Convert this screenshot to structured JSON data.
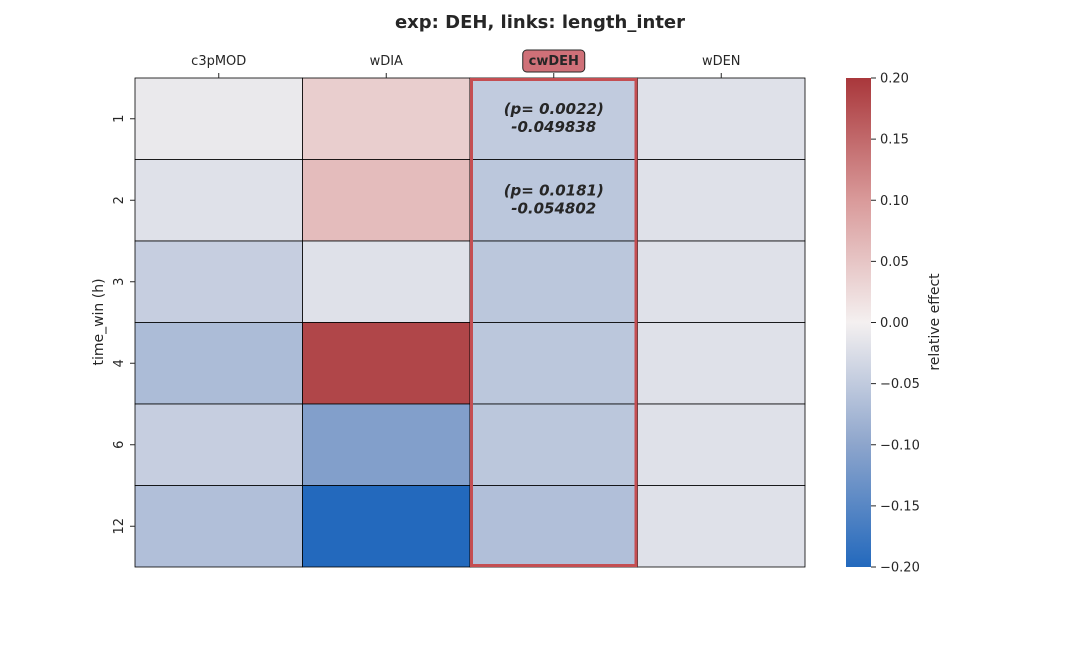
{
  "chart_data": {
    "type": "heatmap",
    "title": "exp: DEH, links: length_inter",
    "xlabel": "",
    "ylabel": "time_win (h)",
    "x_ticks_position": "top",
    "columns": [
      "c3pMOD",
      "wDIA",
      "cwDEH",
      "wDEN"
    ],
    "rows": [
      "1",
      "2",
      "3",
      "4",
      "6",
      "12"
    ],
    "values": [
      [
        -0.01,
        0.04,
        -0.05,
        -0.02
      ],
      [
        -0.02,
        0.06,
        -0.055,
        -0.02
      ],
      [
        -0.045,
        -0.02,
        -0.055,
        -0.02
      ],
      [
        -0.07,
        0.185,
        -0.055,
        -0.02
      ],
      [
        -0.045,
        -0.11,
        -0.055,
        -0.02
      ],
      [
        -0.065,
        -0.2,
        -0.065,
        -0.02
      ]
    ],
    "highlight_column": "cwDEH",
    "annotations": [
      {
        "row": "1",
        "column": "cwDEH",
        "line1": "(p= 0.0022)",
        "line2": "-0.049838"
      },
      {
        "row": "2",
        "column": "cwDEH",
        "line1": "(p= 0.0181)",
        "line2": "-0.054802"
      }
    ],
    "colorbar": {
      "label": "relative effect",
      "range": [
        -0.2,
        0.2
      ],
      "ticks": [
        "0.20",
        "0.15",
        "0.10",
        "0.05",
        "0.00",
        "−0.05",
        "−0.10",
        "−0.15",
        "−0.20"
      ],
      "tick_values": [
        0.2,
        0.15,
        0.1,
        0.05,
        0.0,
        -0.05,
        -0.1,
        -0.15,
        -0.2
      ],
      "colormap": "vlag",
      "colors": {
        "low": "#2369bd",
        "mid": "#f4f0f0",
        "high": "#a9373b"
      }
    },
    "highlight_color": "#c44e52"
  }
}
